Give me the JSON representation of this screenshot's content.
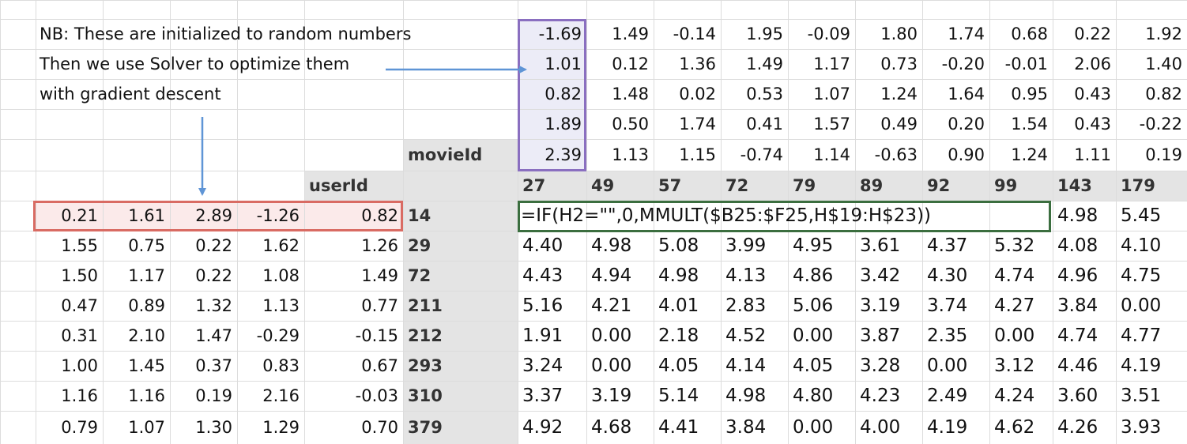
{
  "colors": {
    "gridline": "#dcdcdc",
    "header_fill": "#e4e4e4",
    "selected_fill": "#ececf7",
    "movie_box": "#8a6fc0",
    "user_box": "#d96b63",
    "user_fill": "#fbeaea",
    "formula_box": "#3b6e3f",
    "arrow": "#5f95d6"
  },
  "notes": [
    "NB: These are initialized to random numbers",
    "Then we use Solver to optimize them",
    "with gradient descent"
  ],
  "labels": {
    "movie_id": "movieId",
    "user_id": "userId"
  },
  "movie_factors": [
    [
      "-1.69",
      "1.49",
      "-0.14",
      "1.95",
      "-0.09",
      "1.80",
      "1.74",
      "0.68",
      "0.22",
      "1.92"
    ],
    [
      "1.01",
      "0.12",
      "1.36",
      "1.49",
      "1.17",
      "0.73",
      "-0.20",
      "-0.01",
      "2.06",
      "1.40"
    ],
    [
      "0.82",
      "1.48",
      "0.02",
      "0.53",
      "1.07",
      "1.24",
      "1.64",
      "0.95",
      "0.43",
      "0.82"
    ],
    [
      "1.89",
      "0.50",
      "1.74",
      "0.41",
      "1.57",
      "0.49",
      "0.20",
      "1.54",
      "0.43",
      "-0.22"
    ],
    [
      "2.39",
      "1.13",
      "1.15",
      "-0.74",
      "1.14",
      "-0.63",
      "0.90",
      "1.24",
      "1.11",
      "0.19"
    ]
  ],
  "movie_ids": [
    "27",
    "49",
    "57",
    "72",
    "79",
    "89",
    "92",
    "99",
    "143",
    "179"
  ],
  "user_ids": [
    "14",
    "29",
    "72",
    "211",
    "212",
    "293",
    "310",
    "379"
  ],
  "user_factors": [
    [
      "0.21",
      "1.61",
      "2.89",
      "-1.26",
      "0.82"
    ],
    [
      "1.55",
      "0.75",
      "0.22",
      "1.62",
      "1.26"
    ],
    [
      "1.50",
      "1.17",
      "0.22",
      "1.08",
      "1.49"
    ],
    [
      "0.47",
      "0.89",
      "1.32",
      "1.13",
      "0.77"
    ],
    [
      "0.31",
      "2.10",
      "1.47",
      "-0.29",
      "-0.15"
    ],
    [
      "1.00",
      "1.45",
      "0.37",
      "0.83",
      "0.67"
    ],
    [
      "1.16",
      "1.16",
      "0.19",
      "2.16",
      "-0.03"
    ],
    [
      "0.79",
      "1.07",
      "1.30",
      "1.29",
      "0.70"
    ]
  ],
  "formula": "=IF(H2=\"\",0,MMULT($B25:$F25,H$19:H$23))",
  "predictions": [
    [
      "",
      "",
      "",
      "",
      "",
      "",
      "",
      "",
      "4.98",
      "5.45"
    ],
    [
      "4.40",
      "4.98",
      "5.08",
      "3.99",
      "4.95",
      "3.61",
      "4.37",
      "5.32",
      "4.08",
      "4.10"
    ],
    [
      "4.43",
      "4.94",
      "4.98",
      "4.13",
      "4.86",
      "3.42",
      "4.30",
      "4.74",
      "4.96",
      "4.75"
    ],
    [
      "5.16",
      "4.21",
      "4.01",
      "2.83",
      "5.06",
      "3.19",
      "3.74",
      "4.27",
      "3.84",
      "0.00"
    ],
    [
      "1.91",
      "0.00",
      "2.18",
      "4.52",
      "0.00",
      "3.87",
      "2.35",
      "0.00",
      "4.74",
      "4.77"
    ],
    [
      "3.24",
      "0.00",
      "4.05",
      "4.14",
      "4.05",
      "3.28",
      "0.00",
      "3.12",
      "4.46",
      "4.19"
    ],
    [
      "3.37",
      "3.19",
      "5.14",
      "4.98",
      "4.80",
      "4.23",
      "2.49",
      "4.24",
      "3.60",
      "3.51"
    ],
    [
      "4.92",
      "4.68",
      "4.41",
      "3.84",
      "0.00",
      "4.00",
      "4.19",
      "4.62",
      "4.26",
      "3.93"
    ]
  ]
}
